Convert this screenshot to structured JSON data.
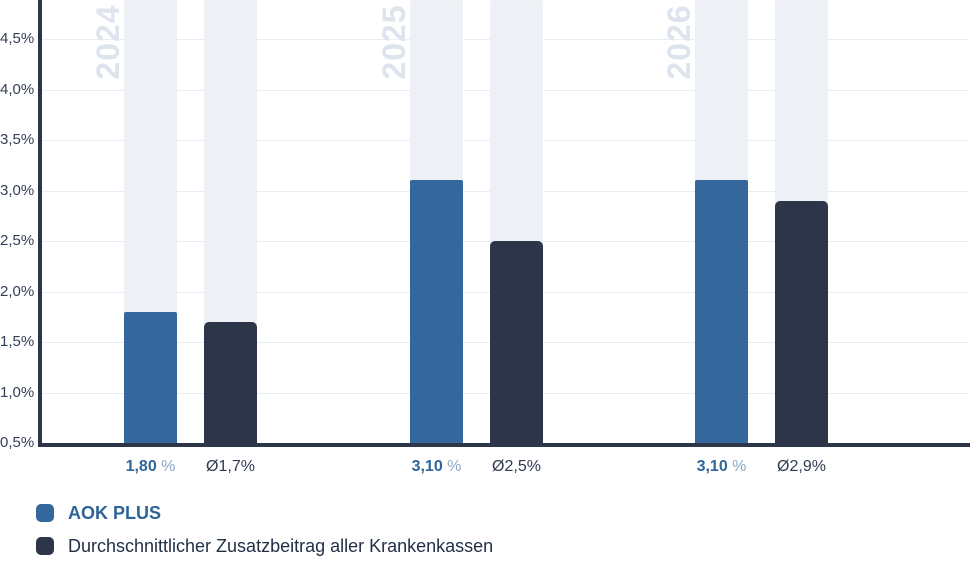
{
  "chart_data": {
    "type": "bar",
    "title": "",
    "xlabel": "",
    "ylabel": "",
    "categories": [
      "2024",
      "2025",
      "2026"
    ],
    "series": [
      {
        "name": "AOK PLUS",
        "values": [
          1.8,
          3.1,
          3.1
        ],
        "value_labels": [
          "1,80",
          "3,10",
          "3,10"
        ],
        "value_suffix": "%"
      },
      {
        "name": "Durchschnittlicher Zusatzbeitrag aller Krankenkassen",
        "values": [
          1.7,
          2.5,
          2.9
        ],
        "value_labels": [
          "Ø1,7%",
          "Ø2,5%",
          "Ø2,9%"
        ]
      }
    ],
    "yticks": [
      {
        "label": "4,5%",
        "value": 4.5
      },
      {
        "label": "4,0%",
        "value": 4.0
      },
      {
        "label": "3,5%",
        "value": 3.5
      },
      {
        "label": "3,0%",
        "value": 3.0
      },
      {
        "label": "2,5%",
        "value": 2.5
      },
      {
        "label": "2,0%",
        "value": 2.0
      },
      {
        "label": "1,5%",
        "value": 1.5
      },
      {
        "label": "1,0%",
        "value": 1.0
      },
      {
        "label": "0,5%",
        "value": 0.5
      }
    ],
    "ylim": [
      0.5,
      4.9
    ],
    "grid": true,
    "legend_position": "bottom-left"
  },
  "colors": {
    "aok_blue": "#34689c",
    "avg_dark": "#2c3648",
    "column_bg": "#edf1f6",
    "gridline": "#e9eef5",
    "axis": "#2c3648",
    "ytick_text": "#333e55",
    "year_label": "#dde4ee",
    "value_blue": "#2f6699",
    "value_percent_sign": "#8aa7c9",
    "value_dark": "#2f3a50",
    "legend_blue_text": "#2d6397",
    "legend_dark_text": "#222f47"
  }
}
